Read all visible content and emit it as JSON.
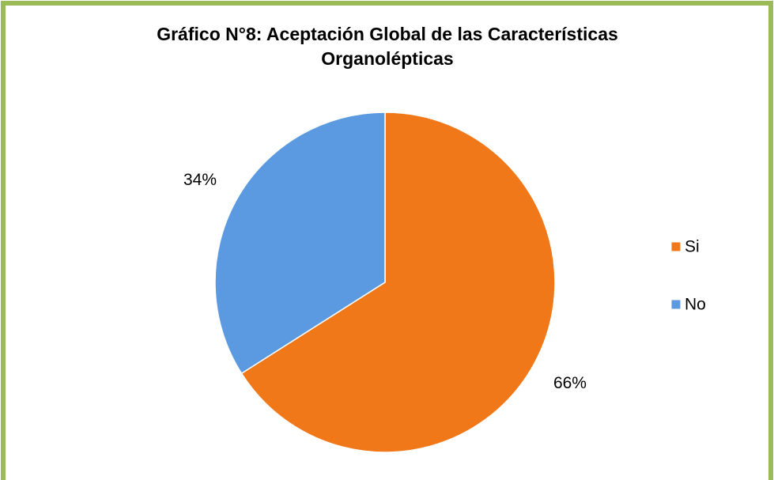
{
  "chart_data": {
    "type": "pie",
    "title": "Gráfico N°8: Aceptación Global de las Características Organolépticas",
    "categories": [
      "Si",
      "No"
    ],
    "values": [
      66,
      34
    ],
    "value_labels": [
      "66%",
      "34%"
    ],
    "colors": [
      "#f07818",
      "#5b9ae0"
    ],
    "legend": "right"
  }
}
